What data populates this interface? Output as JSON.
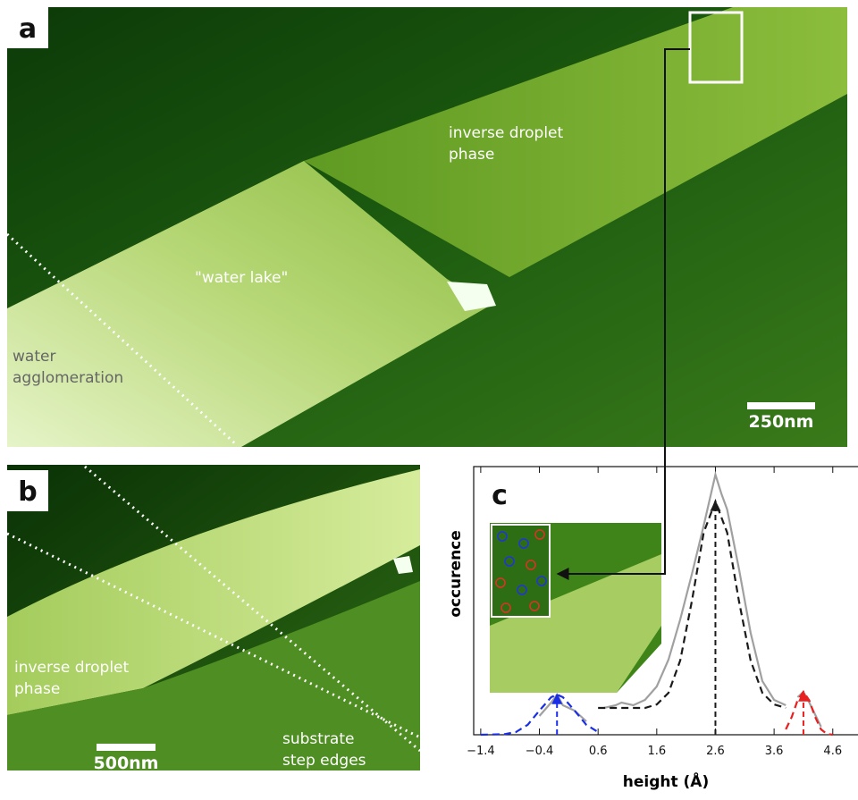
{
  "panels": {
    "a": {
      "label": "a",
      "scale_bar": "250nm",
      "annotations": {
        "droplet": [
          "inverse droplet",
          "phase"
        ],
        "lake": "\"water lake\"",
        "agglomeration": [
          "water",
          "agglomeration"
        ]
      }
    },
    "b": {
      "label": "b",
      "scale_bar": "500nm",
      "annotations": {
        "droplet": [
          "inverse droplet",
          "phase"
        ],
        "steps": [
          "substrate",
          "step edges"
        ]
      }
    }
  },
  "chart_data": {
    "type": "line",
    "panel_label": "c",
    "xlabel": "height (Å)",
    "ylabel": "occurence",
    "xlim": [
      -1.52,
      5.03
    ],
    "ylim": [
      0,
      1
    ],
    "xticks": [
      {
        "value": -1.4,
        "label": "−1.4"
      },
      {
        "value": -0.4,
        "label": "−0.4"
      },
      0.6,
      1.6,
      2.6,
      3.6,
      4.6
    ],
    "series": [
      {
        "color": "#a0a0a0",
        "dash": false,
        "x": [
          -0.4,
          -0.2,
          -0.1,
          0,
          0.2,
          0.4,
          0.5,
          0.7,
          0.9,
          1.0,
          1.2,
          1.4,
          1.6,
          1.8,
          2.0,
          2.2,
          2.4,
          2.6,
          2.7,
          2.8,
          3.0,
          3.2,
          3.4,
          3.6,
          3.8,
          3.9,
          4.0,
          4.1,
          4.2,
          4.4
        ],
        "values": [
          0.07,
          0.12,
          0.15,
          0.11,
          0.09,
          0.05,
          null,
          0.1,
          0.11,
          0.12,
          0.11,
          0.13,
          0.18,
          0.28,
          0.43,
          0.6,
          0.78,
          0.97,
          0.9,
          0.84,
          0.62,
          0.38,
          0.2,
          0.13,
          0.11,
          null,
          0.14,
          0.16,
          0.12,
          0.03
        ]
      },
      {
        "color": "#1a1a1a",
        "dash": true,
        "x": [
          0.6,
          1.0,
          1.4,
          1.6,
          1.8,
          2.0,
          2.2,
          2.4,
          2.6,
          2.8,
          3.0,
          3.2,
          3.4,
          3.6,
          3.8
        ],
        "values": [
          0.1,
          0.1,
          0.1,
          0.113,
          0.156,
          0.277,
          0.5,
          0.754,
          0.87,
          0.754,
          0.5,
          0.277,
          0.156,
          0.113,
          0.1
        ]
      },
      {
        "color": "#1a2ee8",
        "dash": true,
        "x": [
          -1.4,
          -1.0,
          -0.8,
          -0.6,
          -0.4,
          -0.2,
          -0.1,
          0,
          0.2,
          0.4,
          0.6
        ],
        "values": [
          0,
          0.002,
          0.01,
          0.037,
          0.09,
          0.14,
          0.15,
          0.14,
          0.09,
          0.037,
          0.01
        ]
      },
      {
        "color": "#e82020",
        "dash": true,
        "x": [
          3.8,
          3.9,
          4.0,
          4.1,
          4.2,
          4.3,
          4.4,
          4.5,
          4.6
        ],
        "values": [
          0.02,
          0.066,
          0.128,
          0.16,
          0.128,
          0.066,
          0.02,
          0.003,
          0
        ]
      }
    ],
    "arrows": [
      {
        "x": -0.1,
        "y": 0.15,
        "color": "#1a2ee8"
      },
      {
        "x": 2.6,
        "y": 0.87,
        "color": "#1a1a1a"
      },
      {
        "x": 4.1,
        "y": 0.16,
        "color": "#e82020"
      }
    ]
  }
}
